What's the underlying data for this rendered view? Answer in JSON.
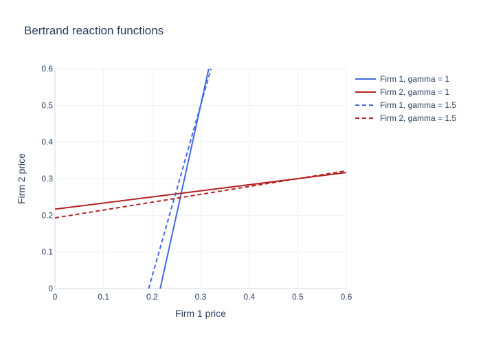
{
  "chart_data": {
    "type": "line",
    "title": "Bertrand reaction functions",
    "xlabel": "Firm 1 price",
    "ylabel": "Firm 2 price",
    "xlim": [
      0,
      0.6
    ],
    "ylim": [
      0,
      0.6
    ],
    "x_ticks": [
      "0",
      "0.1",
      "0.2",
      "0.3",
      "0.4",
      "0.5",
      "0.6"
    ],
    "y_ticks": [
      "0",
      "0.1",
      "0.2",
      "0.3",
      "0.4",
      "0.5",
      "0.6"
    ],
    "grid": true,
    "legend_position": "top-right",
    "series": [
      {
        "name": "Firm 1, gamma = 1",
        "color": "#4169E1",
        "dash": "solid",
        "points": [
          [
            0.2167,
            0
          ],
          [
            0.3167,
            0.6
          ]
        ]
      },
      {
        "name": "Firm 2, gamma = 1",
        "color": "#B22222",
        "dash": "solid",
        "points": [
          [
            0,
            0.2167
          ],
          [
            0.6,
            0.3167
          ]
        ]
      },
      {
        "name": "Firm 1, gamma = 1.5",
        "color": "#4169E1",
        "dash": "dash",
        "points": [
          [
            0.1929,
            0
          ],
          [
            0.3214,
            0.6
          ]
        ]
      },
      {
        "name": "Firm 2, gamma = 1.5",
        "color": "#B22222",
        "dash": "dash",
        "points": [
          [
            0,
            0.1929
          ],
          [
            0.6,
            0.3214
          ]
        ]
      }
    ]
  }
}
